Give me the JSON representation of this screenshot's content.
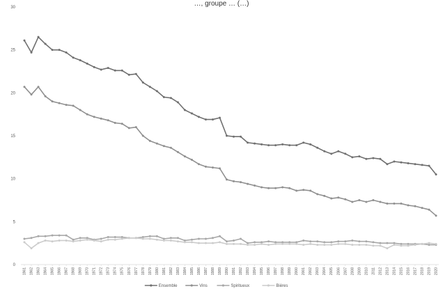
{
  "chart_data": {
    "type": "line",
    "title": "…, groupe … (…)",
    "xlabel": "",
    "ylabel": "",
    "ylim": [
      0,
      30
    ],
    "yticks": [
      0,
      5,
      10,
      15,
      20,
      25,
      30
    ],
    "grid": false,
    "legend": "bottom",
    "x": [
      "1961",
      "1962",
      "1963",
      "1964",
      "1965",
      "1966",
      "1967",
      "1968",
      "1969",
      "1970",
      "1971",
      "1972",
      "1973",
      "1974",
      "1975",
      "1976",
      "1977",
      "1978",
      "1979",
      "1980",
      "1981",
      "1982",
      "1983",
      "1984",
      "1985",
      "1986",
      "1987",
      "1988",
      "1989",
      "1990",
      "1991",
      "1992",
      "1993",
      "1994",
      "1995",
      "1996",
      "1997",
      "1998",
      "1999",
      "2000",
      "2001",
      "2002",
      "2003",
      "2004",
      "2005",
      "2006",
      "2007",
      "2008",
      "2009",
      "2010",
      "2011",
      "2012",
      "2013",
      "2014",
      "2015",
      "2016",
      "2017",
      "2018",
      "2019",
      "2020"
    ],
    "series": [
      {
        "name": "Ensemble",
        "color": "#707070",
        "values": [
          26.1,
          24.7,
          26.5,
          25.7,
          25.0,
          25.0,
          24.7,
          24.1,
          23.8,
          23.4,
          23.0,
          22.7,
          22.9,
          22.6,
          22.6,
          22.1,
          22.2,
          21.2,
          20.7,
          20.2,
          19.5,
          19.4,
          18.9,
          18.0,
          17.6,
          17.2,
          16.9,
          16.9,
          17.1,
          15.0,
          14.9,
          14.9,
          14.2,
          14.1,
          14.0,
          13.9,
          13.9,
          14.0,
          13.9,
          13.9,
          14.2,
          14.0,
          13.6,
          13.2,
          12.9,
          13.2,
          12.9,
          12.5,
          12.6,
          12.3,
          12.4,
          12.3,
          11.7,
          12.0,
          11.9,
          11.8,
          11.7,
          11.6,
          11.5,
          10.5
        ]
      },
      {
        "name": "Vins",
        "color": "#909090",
        "values": [
          20.7,
          19.8,
          20.7,
          19.6,
          19.0,
          18.8,
          18.6,
          18.5,
          18.0,
          17.5,
          17.2,
          17.0,
          16.8,
          16.5,
          16.4,
          15.9,
          16.0,
          15.0,
          14.4,
          14.1,
          13.8,
          13.6,
          13.1,
          12.6,
          12.2,
          11.7,
          11.4,
          11.3,
          11.2,
          9.9,
          9.7,
          9.6,
          9.4,
          9.2,
          9.0,
          8.9,
          8.9,
          9.0,
          8.9,
          8.6,
          8.7,
          8.6,
          8.2,
          8.0,
          7.7,
          7.8,
          7.6,
          7.3,
          7.5,
          7.3,
          7.5,
          7.3,
          7.1,
          7.1,
          7.1,
          6.9,
          6.8,
          6.6,
          6.4,
          5.7
        ]
      },
      {
        "name": "Spiritueux",
        "color": "#a8a8a8",
        "values": [
          3.0,
          3.1,
          3.3,
          3.3,
          3.4,
          3.4,
          3.4,
          2.9,
          3.1,
          3.1,
          2.9,
          3.0,
          3.2,
          3.2,
          3.2,
          3.1,
          3.1,
          3.2,
          3.3,
          3.3,
          3.0,
          3.1,
          3.1,
          2.8,
          2.9,
          3.0,
          3.0,
          3.1,
          3.3,
          2.7,
          2.8,
          3.0,
          2.5,
          2.6,
          2.6,
          2.7,
          2.6,
          2.6,
          2.6,
          2.6,
          2.8,
          2.7,
          2.7,
          2.6,
          2.6,
          2.7,
          2.7,
          2.8,
          2.7,
          2.7,
          2.6,
          2.5,
          2.5,
          2.5,
          2.4,
          2.4,
          2.4,
          2.4,
          2.3,
          2.3
        ]
      },
      {
        "name": "Bières",
        "color": "#cccccc",
        "values": [
          2.6,
          1.9,
          2.5,
          2.8,
          2.7,
          2.8,
          2.8,
          2.7,
          2.8,
          2.9,
          2.8,
          2.7,
          2.9,
          2.9,
          3.0,
          3.1,
          3.1,
          3.0,
          3.0,
          2.9,
          2.8,
          2.8,
          2.7,
          2.6,
          2.6,
          2.5,
          2.5,
          2.5,
          2.6,
          2.4,
          2.4,
          2.4,
          2.3,
          2.3,
          2.4,
          2.3,
          2.4,
          2.4,
          2.4,
          2.4,
          2.3,
          2.4,
          2.3,
          2.3,
          2.3,
          2.4,
          2.4,
          2.3,
          2.3,
          2.3,
          2.2,
          2.2,
          1.9,
          2.3,
          2.2,
          2.2,
          2.3,
          2.4,
          2.5,
          2.4
        ]
      }
    ]
  }
}
